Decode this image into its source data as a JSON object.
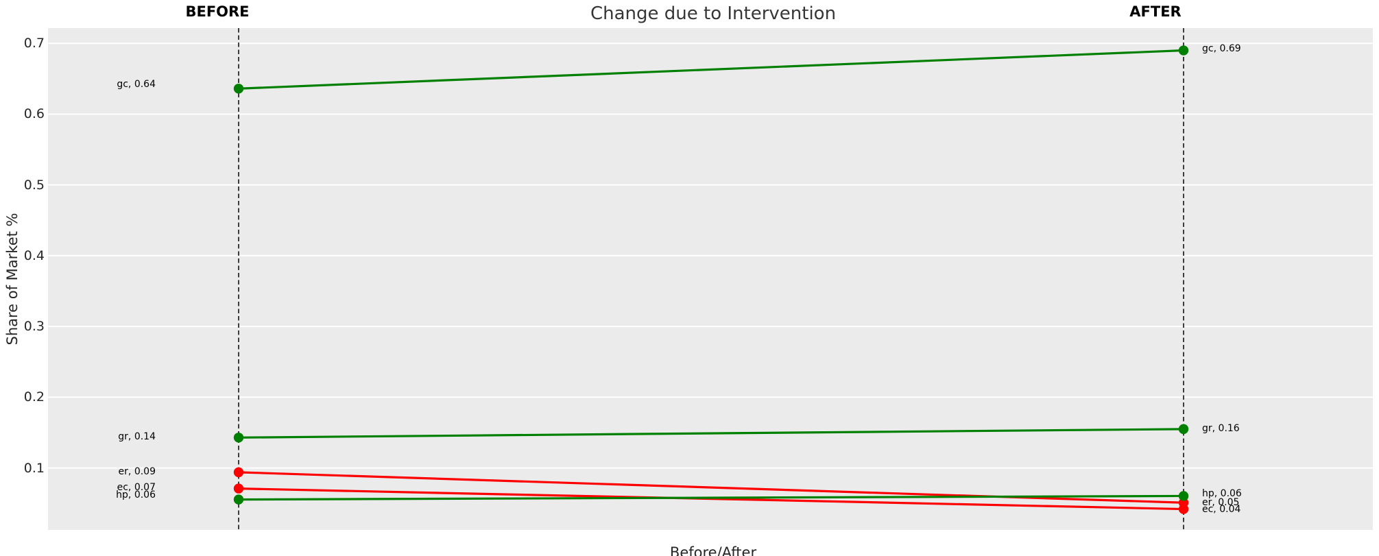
{
  "chart_data": {
    "type": "line",
    "chart_style": "slopegraph",
    "title": "Change due to Intervention",
    "xlabel": "Before/After",
    "ylabel": "Share of Market %",
    "x_categories": [
      "BEFORE",
      "AFTER"
    ],
    "y_ticks": [
      0.1,
      0.2,
      0.3,
      0.4,
      0.5,
      0.6,
      0.7
    ],
    "ylim": [
      0.0125,
      0.7215
    ],
    "grid": true,
    "legend": false,
    "series": [
      {
        "name": "gc",
        "direction": "increase",
        "color": "#008000",
        "before": 0.636,
        "after": 0.69,
        "label_before": "gc, 0.64",
        "label_after": "gc, 0.69"
      },
      {
        "name": "gr",
        "direction": "increase",
        "color": "#008000",
        "before": 0.143,
        "after": 0.155,
        "label_before": "gr, 0.14",
        "label_after": "gr, 0.16"
      },
      {
        "name": "er",
        "direction": "decrease",
        "color": "#ff0000",
        "before": 0.094,
        "after": 0.051,
        "label_before": "er, 0.09",
        "label_after": "er, 0.05"
      },
      {
        "name": "ec",
        "direction": "decrease",
        "color": "#ff0000",
        "before": 0.071,
        "after": 0.042,
        "label_before": "ec, 0.07",
        "label_after": "ec, 0.04"
      },
      {
        "name": "hp",
        "direction": "increase",
        "color": "#008000",
        "before": 0.0555,
        "after": 0.0605,
        "label_before": "hp, 0.06",
        "label_after": "hp, 0.06"
      }
    ],
    "colors": {
      "panel_bg": "#ebebeb",
      "gridline": "#ffffff",
      "increase": "#008000",
      "decrease": "#ff0000",
      "guide_line": "#111111",
      "text": "#262626"
    }
  }
}
